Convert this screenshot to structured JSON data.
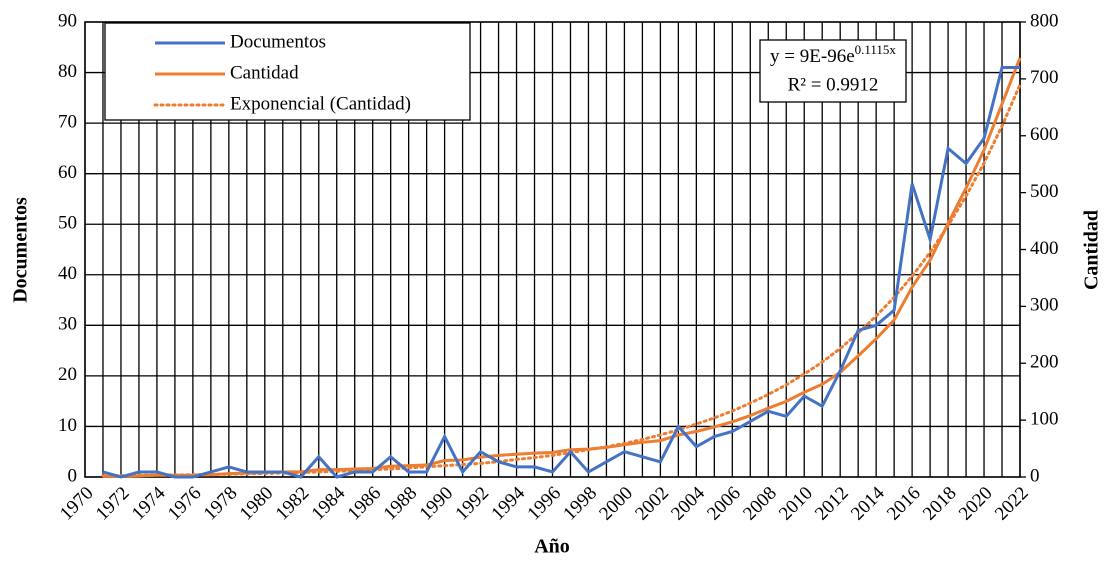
{
  "chart_data": {
    "type": "line",
    "xlabel": "Año",
    "ylabel": "Documentos",
    "y2label": "Cantidad",
    "x": [
      1971,
      1972,
      1973,
      1974,
      1975,
      1976,
      1977,
      1978,
      1979,
      1980,
      1981,
      1982,
      1983,
      1984,
      1985,
      1986,
      1987,
      1988,
      1989,
      1990,
      1991,
      1992,
      1993,
      1994,
      1995,
      1996,
      1997,
      1998,
      1999,
      2000,
      2001,
      2002,
      2003,
      2004,
      2005,
      2006,
      2007,
      2008,
      2009,
      2010,
      2011,
      2012,
      2013,
      2014,
      2015,
      2016,
      2017,
      2018,
      2019,
      2020,
      2021,
      2022
    ],
    "series": [
      {
        "name": "Documentos",
        "color": "#4472c4",
        "style": "solid",
        "axis": "y",
        "values": [
          1,
          0,
          1,
          1,
          0,
          0,
          1,
          2,
          1,
          1,
          1,
          0,
          4,
          0,
          1,
          1,
          4,
          1,
          1,
          8,
          1,
          5,
          3,
          2,
          2,
          1,
          5,
          1,
          3,
          5,
          4,
          3,
          10,
          6,
          8,
          9,
          11,
          13,
          12,
          16,
          14,
          21,
          29,
          30,
          33,
          58,
          47,
          65,
          62,
          67,
          81,
          81
        ]
      },
      {
        "name": "Cantidad",
        "color": "#ed7d31",
        "style": "solid",
        "axis": "y2",
        "values": [
          1,
          1,
          2,
          3,
          3,
          3,
          4,
          6,
          7,
          8,
          9,
          9,
          13,
          13,
          14,
          15,
          19,
          20,
          21,
          29,
          30,
          35,
          38,
          40,
          42,
          43,
          48,
          49,
          52,
          57,
          61,
          64,
          74,
          80,
          88,
          97,
          108,
          121,
          133,
          149,
          163,
          184,
          213,
          243,
          276,
          334,
          381,
          446,
          508,
          575,
          656,
          737
        ]
      },
      {
        "name": "Exponencial (Cantidad)",
        "color": "#ed7d31",
        "style": "dotted",
        "axis": "y2",
        "values": [
          2.3,
          2.6,
          2.9,
          3.2,
          3.6,
          4.0,
          4.5,
          5.0,
          5.6,
          6.3,
          7,
          8,
          9,
          10,
          11,
          13,
          14,
          16,
          18,
          20,
          22,
          24,
          27,
          31,
          34,
          38,
          43,
          48,
          53,
          59,
          66,
          74,
          83,
          93,
          104,
          116,
          130,
          145,
          162,
          181,
          202,
          226,
          253,
          283,
          316,
          353,
          395,
          442,
          494,
          552,
          617,
          690
        ]
      }
    ],
    "annotation": {
      "equation": "y = 9E-96e",
      "exponent": "0.1115x",
      "r2": "R² = 0.9912"
    },
    "xlim": [
      1970,
      2022
    ],
    "xticks": [
      1970,
      1972,
      1974,
      1976,
      1978,
      1980,
      1982,
      1984,
      1986,
      1988,
      1990,
      1992,
      1994,
      1996,
      1998,
      2000,
      2002,
      2004,
      2006,
      2008,
      2010,
      2012,
      2014,
      2016,
      2018,
      2020,
      2022
    ],
    "xgrid_minor": [
      1971,
      1973,
      1975,
      1977,
      1979,
      1981,
      1983,
      1985,
      1987,
      1989,
      1991,
      1993,
      1995,
      1997,
      1999,
      2001,
      2003,
      2005,
      2007,
      2009,
      2011,
      2013,
      2015,
      2017,
      2019,
      2021
    ],
    "ylim": [
      0,
      90
    ],
    "yticks": [
      0,
      10,
      20,
      30,
      40,
      50,
      60,
      70,
      80,
      90
    ],
    "y2lim": [
      0,
      800
    ],
    "y2ticks": [
      0,
      100,
      200,
      300,
      400,
      500,
      600,
      700,
      800
    ],
    "grid": true,
    "legend": "upper left"
  }
}
